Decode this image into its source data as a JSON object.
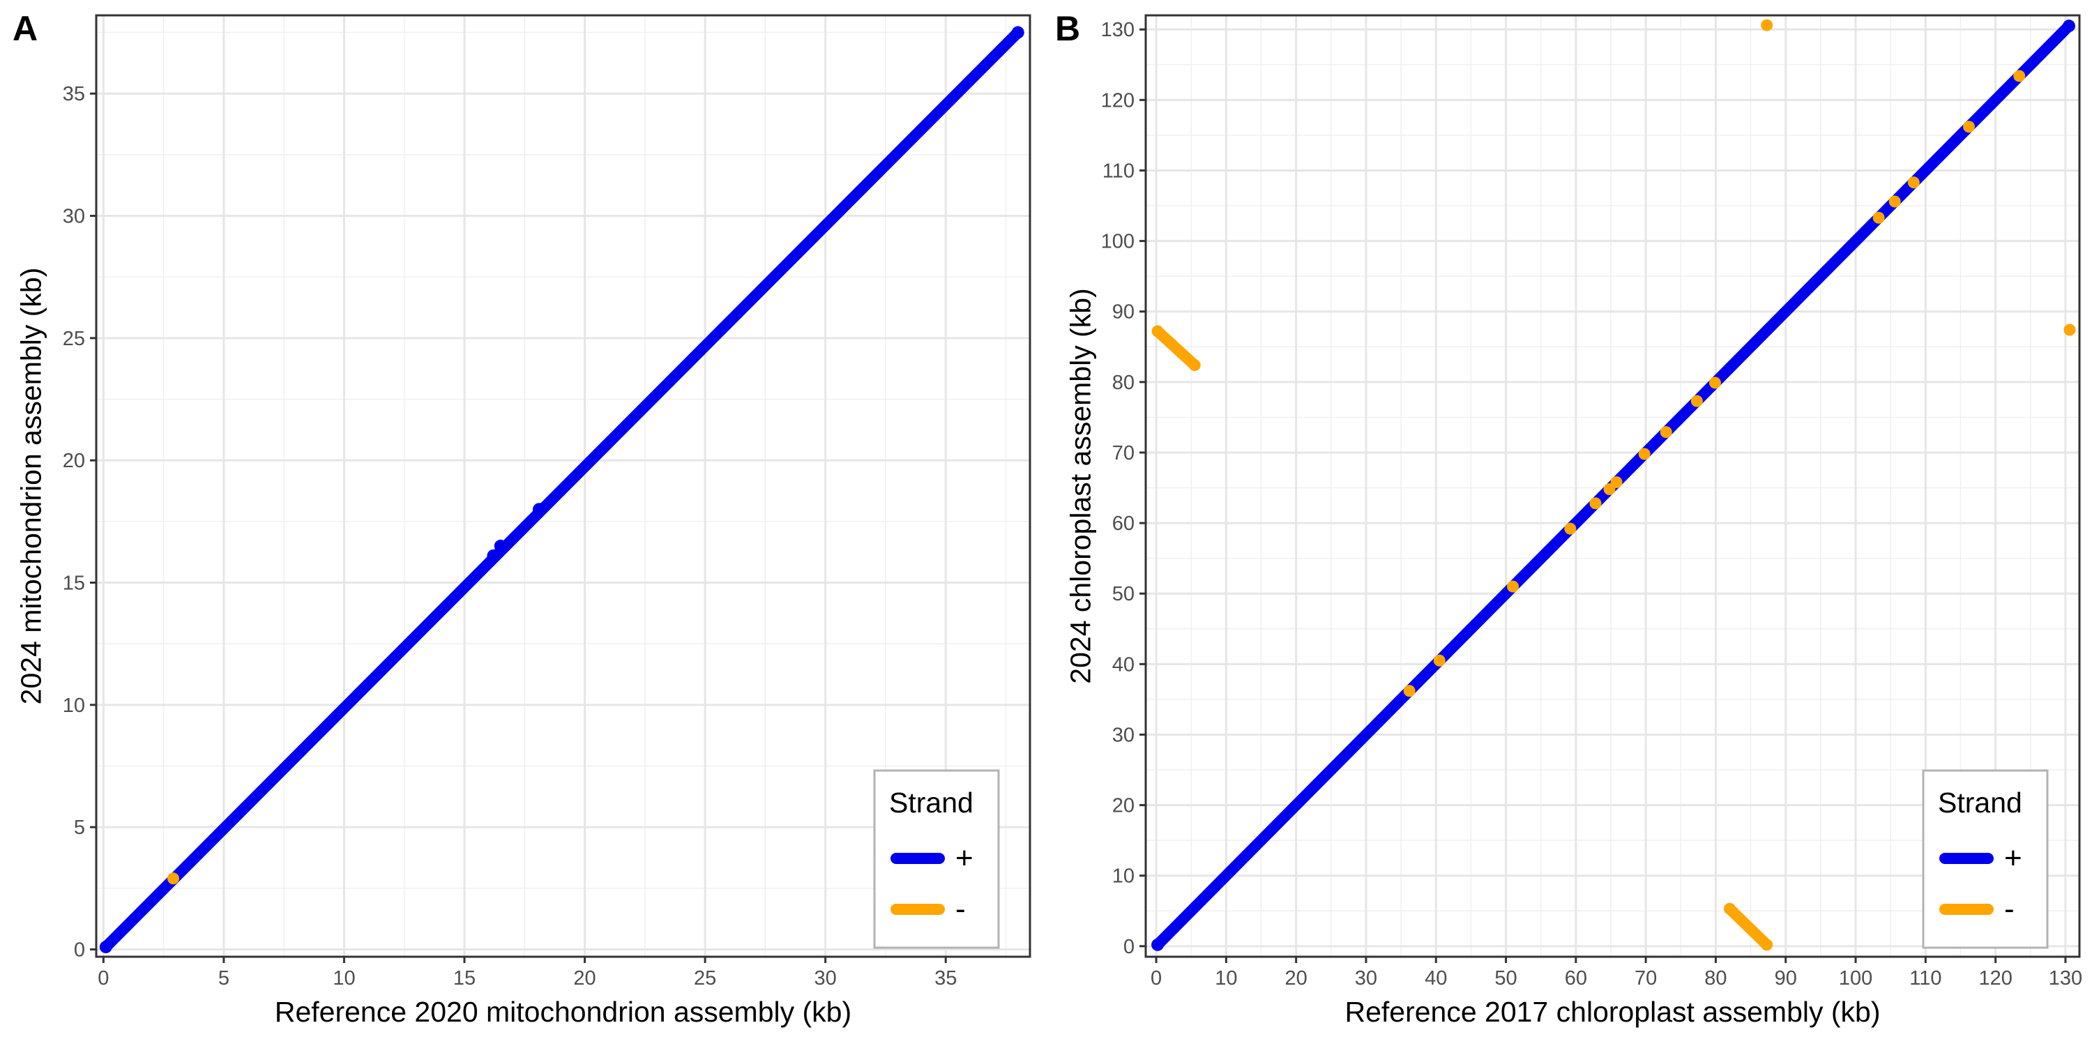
{
  "legend": {
    "title": "Strand",
    "entries": [
      {
        "label": "+",
        "color": "#0000EE"
      },
      {
        "label": "-",
        "color": "#FFA500"
      }
    ]
  },
  "chart_data": [
    {
      "panel": "A",
      "type": "scatter",
      "xlabel": "Reference 2020 mitochondrion assembly (kb)",
      "ylabel": "2024 mitochondrion assembly (kb)",
      "xlim": [
        -0.3,
        38.5
      ],
      "ylim": [
        -0.3,
        38.2
      ],
      "xticks": [
        0,
        5,
        10,
        15,
        20,
        25,
        30,
        35
      ],
      "yticks": [
        0,
        5,
        10,
        15,
        20,
        25,
        30,
        35
      ],
      "grid": true,
      "legend_position": "bottom-right",
      "series": [
        {
          "name": "+",
          "color": "#0000EE",
          "points": [
            [
              0.1,
              0.1
            ],
            [
              16.2,
              16.1
            ],
            [
              16.5,
              16.5
            ],
            [
              18.1,
              18.0
            ],
            [
              38.0,
              37.5
            ]
          ]
        },
        {
          "name": "-",
          "color": "#FFA500",
          "points": [
            [
              2.9,
              2.9
            ]
          ]
        }
      ]
    },
    {
      "panel": "B",
      "type": "scatter",
      "xlabel": "Reference 2017 chloroplast assembly (kb)",
      "ylabel": "2024 chloroplast assembly (kb)",
      "xlim": [
        -1.5,
        132.0
      ],
      "ylim": [
        -1.5,
        132.0
      ],
      "xticks": [
        0,
        10,
        20,
        30,
        40,
        50,
        60,
        70,
        80,
        90,
        100,
        110,
        120,
        130
      ],
      "yticks": [
        0,
        10,
        20,
        30,
        40,
        50,
        60,
        70,
        80,
        90,
        100,
        110,
        120,
        130
      ],
      "grid": true,
      "legend_position": "bottom-right",
      "series": [
        {
          "name": "+",
          "color": "#0000EE",
          "points": [
            [
              0.2,
              0.2
            ],
            [
              130.5,
              130.5
            ]
          ]
        },
        {
          "name": "-",
          "color": "#FFA500",
          "points": [
            [
              0.2,
              87.2
            ],
            [
              5.5,
              82.4
            ],
            [
              82.0,
              5.3
            ],
            [
              87.3,
              0.2
            ],
            [
              87.3,
              130.6
            ],
            [
              130.6,
              87.4
            ],
            [
              36.2,
              36.2
            ],
            [
              40.5,
              40.5
            ],
            [
              51.0,
              51.0
            ],
            [
              59.2,
              59.2
            ],
            [
              62.8,
              62.8
            ],
            [
              64.8,
              64.8
            ],
            [
              65.8,
              65.8
            ],
            [
              69.8,
              69.8
            ],
            [
              72.9,
              72.9
            ],
            [
              77.3,
              77.3
            ],
            [
              79.9,
              79.9
            ],
            [
              103.3,
              103.3
            ],
            [
              105.6,
              105.6
            ],
            [
              108.3,
              108.3
            ],
            [
              116.2,
              116.2
            ],
            [
              123.4,
              123.4
            ]
          ]
        }
      ]
    }
  ]
}
